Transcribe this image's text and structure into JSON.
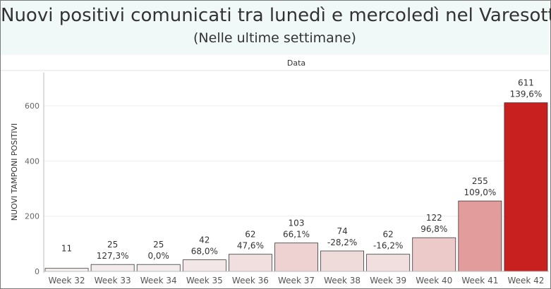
{
  "header": {
    "title": "Nuovi positivi comunicati tra lunedì e mercoledì nel Varesotto",
    "subtitle": "(Nelle ultime settimane)"
  },
  "chart_data": {
    "type": "bar",
    "title": "Nuovi positivi comunicati tra lunedì e mercoledì nel Varesotto",
    "subtitle": "(Nelle ultime settimane)",
    "column_header": "Data",
    "ylabel": "NUOVI TAMPONI POSITIVI",
    "xlabel": "",
    "ylim": [
      0,
      720
    ],
    "yticks": [
      0,
      200,
      400,
      600
    ],
    "grid": true,
    "categories": [
      "Week 32",
      "Week 33",
      "Week 34",
      "Week 35",
      "Week 36",
      "Week 37",
      "Week 38",
      "Week 39",
      "Week 40",
      "Week 41",
      "Week 42"
    ],
    "values": [
      11,
      25,
      25,
      42,
      62,
      103,
      74,
      62,
      122,
      255,
      611
    ],
    "value_labels": [
      "11",
      "25",
      "25",
      "42",
      "62",
      "103",
      "74",
      "62",
      "122",
      "255",
      "611"
    ],
    "change_labels": [
      "",
      "127,3%",
      "0,0%",
      "68,0%",
      "47,6%",
      "66,1%",
      "-28,2%",
      "-16,2%",
      "96,8%",
      "109,0%",
      "139,6%"
    ],
    "colors": {
      "min": "#f5f1f1",
      "max": "#c8201f",
      "bar_stroke": "#3a3a3a",
      "grid": "#eeeeee",
      "axis": "#bbbbbb"
    }
  }
}
